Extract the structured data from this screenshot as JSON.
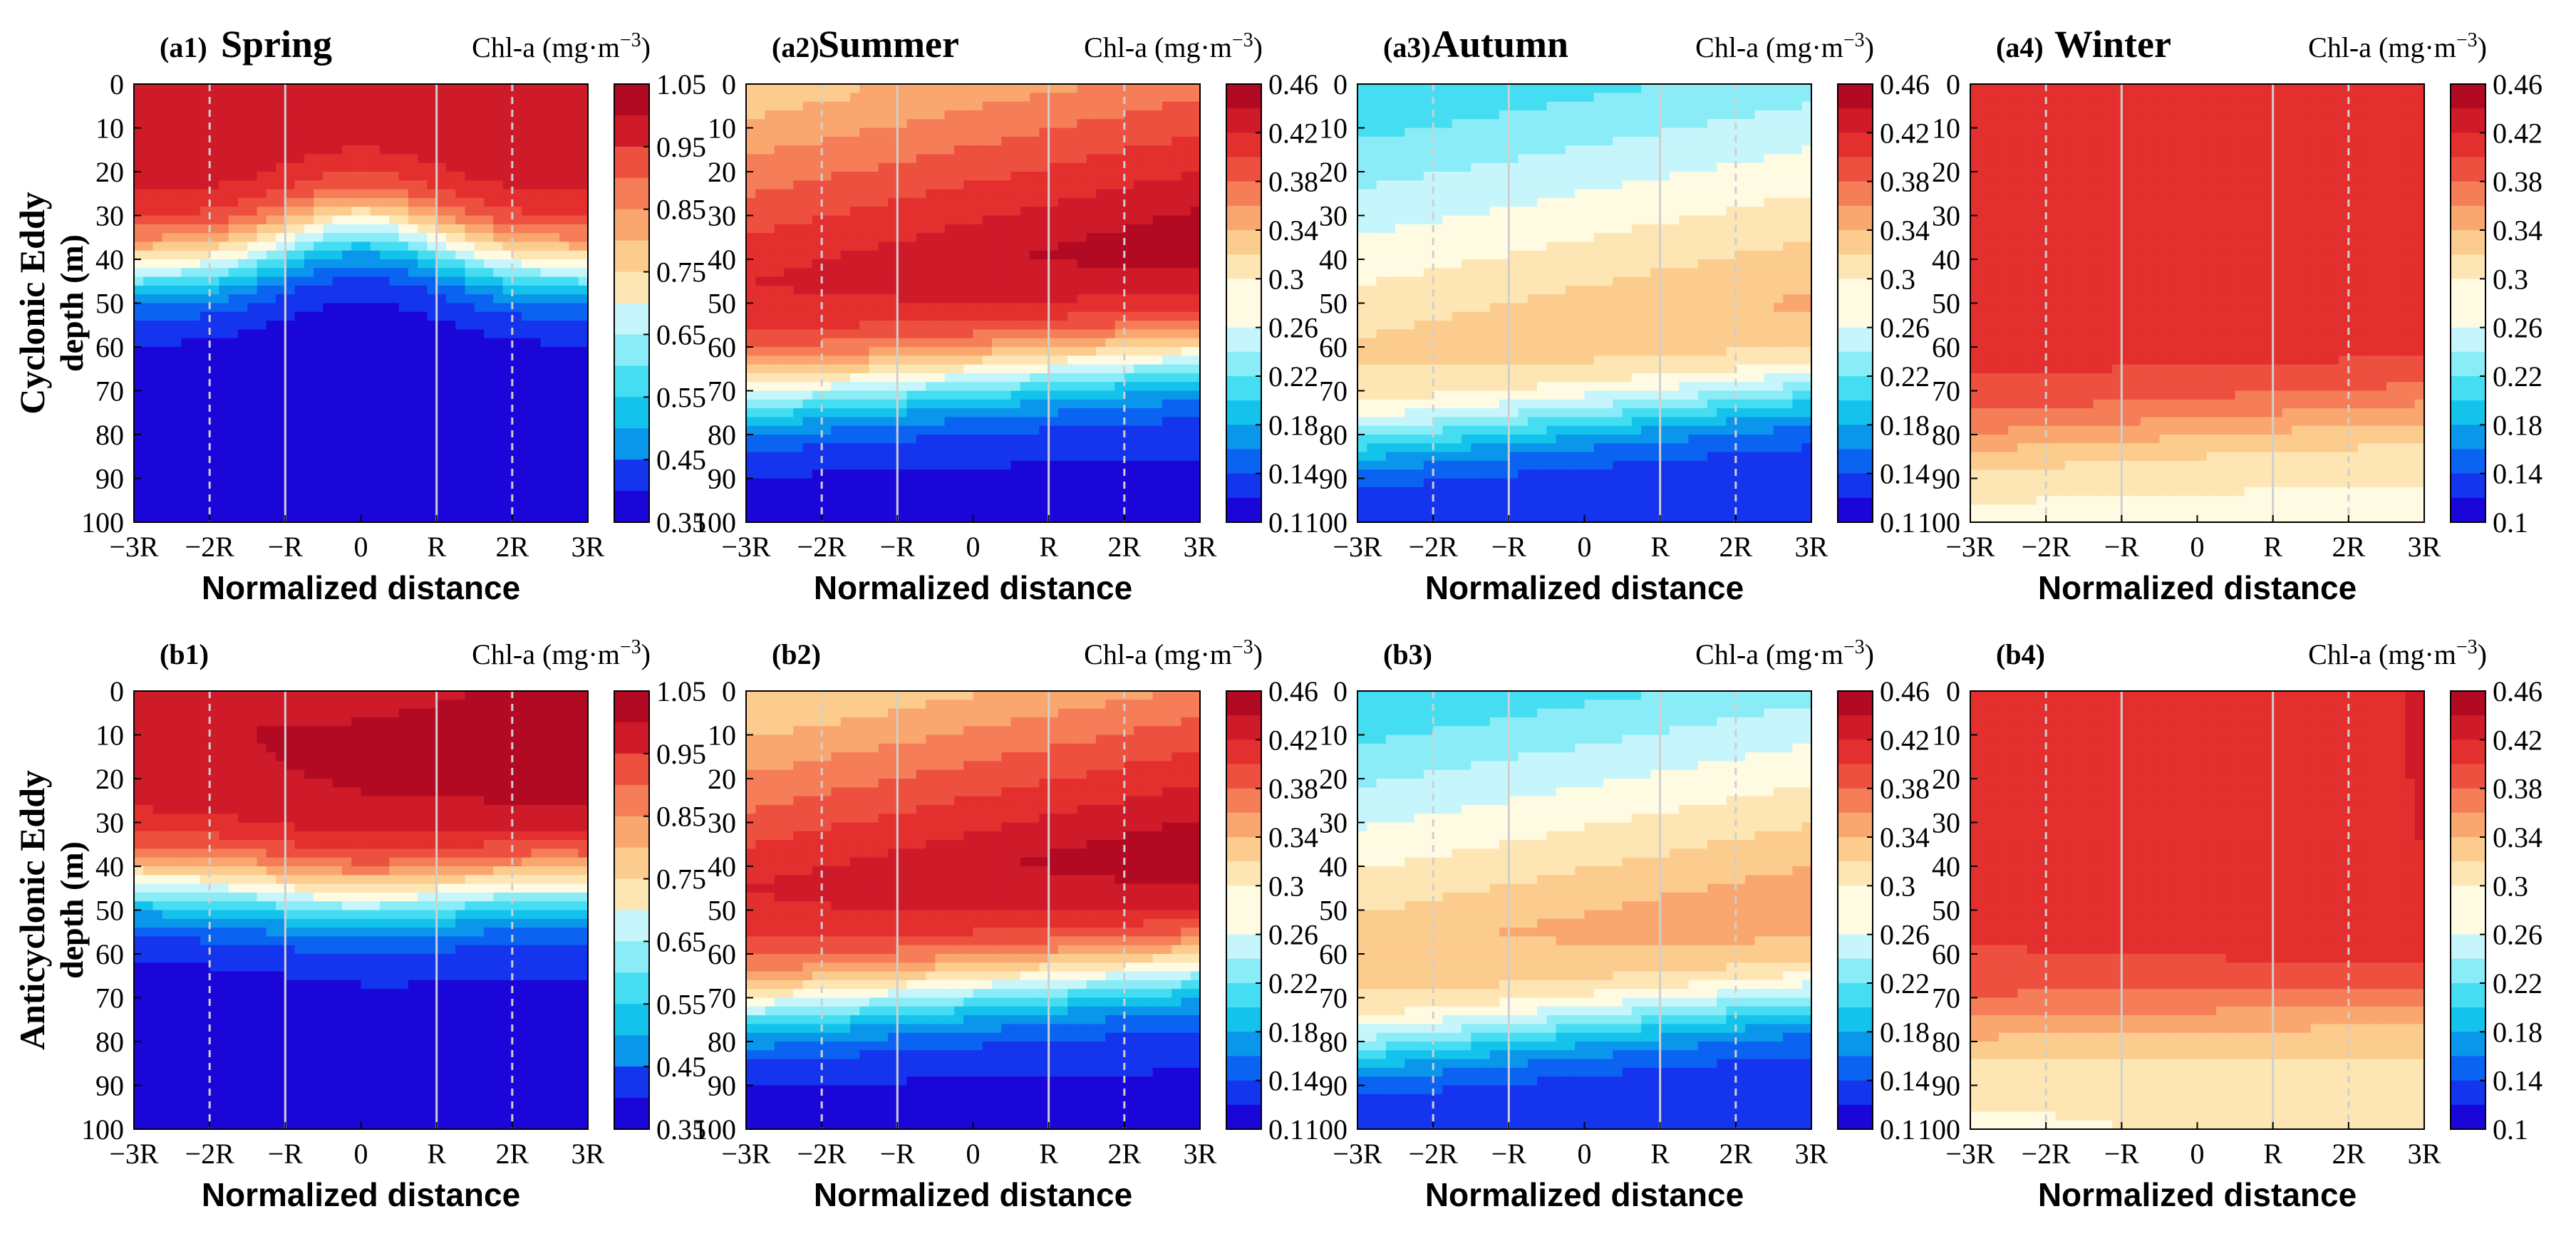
{
  "figure": {
    "row_labels": [
      {
        "eddy": "Cyclonic Eddy",
        "ylabel": "depth (m)"
      },
      {
        "eddy": "Anticyclonic Eddy",
        "ylabel": "depth (m)"
      }
    ],
    "xlabel": "Normalized distance",
    "colorbar_label_prefix": "Chl-a (mg·m",
    "colorbar_label_exp": "−3",
    "colorbar_label_suffix": ")"
  },
  "chart_data": [
    {
      "id": "a1",
      "panel_label": "(a1)",
      "title": "Spring",
      "type": "heatmap",
      "row": 0,
      "col": 0,
      "x_ticks": [
        "−3R",
        "−2R",
        "−R",
        "0",
        "R",
        "2R",
        "3R"
      ],
      "y_ticks": [
        "0",
        "10",
        "20",
        "30",
        "40",
        "50",
        "60",
        "70",
        "80",
        "90",
        "100"
      ],
      "xlim": [
        -3,
        3
      ],
      "ylim": [
        0,
        100
      ],
      "colorbar_ticks": [
        "1.05",
        "0.95",
        "0.85",
        "0.75",
        "0.65",
        "0.55",
        "0.45",
        "0.35"
      ],
      "clim": [
        0.35,
        1.05
      ],
      "levels": 14,
      "center_value": 1.0,
      "surface_value": 1.0,
      "dcm_depth": 8,
      "dcm_value": 1.0,
      "deep_value": 0.36,
      "decay_depth": 42,
      "decay_width": 13,
      "tilt": 0,
      "x_asym": 0,
      "center_lift": 10
    },
    {
      "id": "a2",
      "panel_label": "(a2)",
      "title": "Summer",
      "type": "heatmap",
      "row": 0,
      "col": 1,
      "x_ticks": [
        "−3R",
        "−2R",
        "−R",
        "0",
        "R",
        "2R",
        "3R"
      ],
      "y_ticks": [
        "0",
        "10",
        "20",
        "30",
        "40",
        "50",
        "60",
        "70",
        "80",
        "90",
        "100"
      ],
      "xlim": [
        -3,
        3
      ],
      "ylim": [
        0,
        100
      ],
      "colorbar_ticks": [
        "0.46",
        "0.42",
        "0.38",
        "0.34",
        "0.3",
        "0.26",
        "0.22",
        "0.18",
        "0.14",
        "0.1"
      ],
      "clim": [
        0.1,
        0.46
      ],
      "levels": 18,
      "surface_value": 0.34,
      "dcm_depth": 40,
      "dcm_value": 0.44,
      "deep_value": 0.11,
      "decay_depth": 66,
      "decay_width": 14,
      "tilt": -5,
      "x_asym": 0.04,
      "center_lift": 0
    },
    {
      "id": "a3",
      "panel_label": "(a3)",
      "title": "Autumn",
      "type": "heatmap",
      "row": 0,
      "col": 2,
      "x_ticks": [
        "−3R",
        "−2R",
        "−R",
        "0",
        "R",
        "2R",
        "3R"
      ],
      "y_ticks": [
        "0",
        "10",
        "20",
        "30",
        "40",
        "50",
        "60",
        "70",
        "80",
        "90",
        "100"
      ],
      "xlim": [
        -3,
        3
      ],
      "ylim": [
        0,
        100
      ],
      "colorbar_ticks": [
        "0.46",
        "0.42",
        "0.38",
        "0.34",
        "0.3",
        "0.26",
        "0.22",
        "0.18",
        "0.14",
        "0.1"
      ],
      "clim": [
        0.1,
        0.46
      ],
      "levels": 18,
      "surface_value": 0.22,
      "dcm_depth": 55,
      "dcm_value": 0.33,
      "deep_value": 0.12,
      "decay_depth": 76,
      "decay_width": 12,
      "tilt": -6,
      "x_asym": 0.03,
      "center_lift": 0
    },
    {
      "id": "a4",
      "panel_label": "(a4)",
      "title": "Winter",
      "type": "heatmap",
      "row": 0,
      "col": 3,
      "x_ticks": [
        "−3R",
        "−2R",
        "−R",
        "0",
        "R",
        "2R",
        "3R"
      ],
      "y_ticks": [
        "0",
        "10",
        "20",
        "30",
        "40",
        "50",
        "60",
        "70",
        "80",
        "90",
        "100"
      ],
      "xlim": [
        -3,
        3
      ],
      "ylim": [
        0,
        100
      ],
      "colorbar_ticks": [
        "0.46",
        "0.42",
        "0.38",
        "0.34",
        "0.3",
        "0.26",
        "0.22",
        "0.18",
        "0.14",
        "0.1"
      ],
      "clim": [
        0.1,
        0.46
      ],
      "levels": 18,
      "surface_value": 0.41,
      "dcm_depth": 20,
      "dcm_value": 0.41,
      "deep_value": 0.28,
      "decay_depth": 78,
      "decay_width": 14,
      "tilt": -4,
      "x_asym": 0.01,
      "center_lift": 0
    },
    {
      "id": "b1",
      "panel_label": "(b1)",
      "title": "",
      "type": "heatmap",
      "row": 1,
      "col": 0,
      "x_ticks": [
        "−3R",
        "−2R",
        "−R",
        "0",
        "R",
        "2R",
        "3R"
      ],
      "y_ticks": [
        "0",
        "10",
        "20",
        "30",
        "40",
        "50",
        "60",
        "70",
        "80",
        "90",
        "100"
      ],
      "xlim": [
        -3,
        3
      ],
      "ylim": [
        0,
        100
      ],
      "colorbar_ticks": [
        "1.05",
        "0.95",
        "0.85",
        "0.75",
        "0.65",
        "0.55",
        "0.45",
        "0.35"
      ],
      "clim": [
        0.35,
        1.05
      ],
      "levels": 14,
      "surface_value": 1.0,
      "dcm_depth": 8,
      "dcm_value": 1.02,
      "deep_value": 0.37,
      "decay_depth": 44,
      "decay_width": 13,
      "tilt": 0,
      "x_asym": 0.02,
      "center_lift": -3
    },
    {
      "id": "b2",
      "panel_label": "(b2)",
      "title": "",
      "type": "heatmap",
      "row": 1,
      "col": 1,
      "x_ticks": [
        "−3R",
        "−2R",
        "−R",
        "0",
        "R",
        "2R",
        "3R"
      ],
      "y_ticks": [
        "0",
        "10",
        "20",
        "30",
        "40",
        "50",
        "60",
        "70",
        "80",
        "90",
        "100"
      ],
      "xlim": [
        -3,
        3
      ],
      "ylim": [
        0,
        100
      ],
      "colorbar_ticks": [
        "0.46",
        "0.42",
        "0.38",
        "0.34",
        "0.3",
        "0.26",
        "0.22",
        "0.18",
        "0.14",
        "0.1"
      ],
      "clim": [
        0.1,
        0.46
      ],
      "levels": 18,
      "surface_value": 0.33,
      "dcm_depth": 40,
      "dcm_value": 0.44,
      "deep_value": 0.11,
      "decay_depth": 67,
      "decay_width": 14,
      "tilt": -5,
      "x_asym": 0.04,
      "center_lift": 0
    },
    {
      "id": "b3",
      "panel_label": "(b3)",
      "title": "",
      "type": "heatmap",
      "row": 1,
      "col": 2,
      "x_ticks": [
        "−3R",
        "−2R",
        "−R",
        "0",
        "R",
        "2R",
        "3R"
      ],
      "y_ticks": [
        "0",
        "10",
        "20",
        "30",
        "40",
        "50",
        "60",
        "70",
        "80",
        "90",
        "100"
      ],
      "xlim": [
        -3,
        3
      ],
      "ylim": [
        0,
        100
      ],
      "colorbar_ticks": [
        "0.46",
        "0.42",
        "0.38",
        "0.34",
        "0.3",
        "0.26",
        "0.22",
        "0.18",
        "0.14",
        "0.1"
      ],
      "clim": [
        0.1,
        0.46
      ],
      "levels": 18,
      "surface_value": 0.22,
      "dcm_depth": 53,
      "dcm_value": 0.34,
      "deep_value": 0.12,
      "decay_depth": 76,
      "decay_width": 12,
      "tilt": -6,
      "x_asym": 0.03,
      "center_lift": 0
    },
    {
      "id": "b4",
      "panel_label": "(b4)",
      "title": "",
      "type": "heatmap",
      "row": 1,
      "col": 3,
      "x_ticks": [
        "−3R",
        "−2R",
        "−R",
        "0",
        "R",
        "2R",
        "3R"
      ],
      "y_ticks": [
        "0",
        "10",
        "20",
        "30",
        "40",
        "50",
        "60",
        "70",
        "80",
        "90",
        "100"
      ],
      "xlim": [
        -3,
        3
      ],
      "ylim": [
        0,
        100
      ],
      "colorbar_ticks": [
        "0.46",
        "0.42",
        "0.38",
        "0.34",
        "0.3",
        "0.26",
        "0.22",
        "0.18",
        "0.14",
        "0.1"
      ],
      "clim": [
        0.1,
        0.46
      ],
      "levels": 18,
      "surface_value": 0.41,
      "dcm_depth": 20,
      "dcm_value": 0.41,
      "deep_value": 0.29,
      "decay_depth": 74,
      "decay_width": 14,
      "tilt": -3,
      "x_asym": 0.02,
      "center_lift": 0
    }
  ],
  "colors": {
    "colormap": [
      "#1a06d9",
      "#1434ee",
      "#0b63f2",
      "#0a96ea",
      "#13c3ec",
      "#45ddf2",
      "#8aecf7",
      "#c6f6fb",
      "#fffbe3",
      "#fde6b4",
      "#fbcc8d",
      "#f9a76e",
      "#f57d57",
      "#ee5040",
      "#e42f2f",
      "#cf1a2a",
      "#b20a22"
    ],
    "guide_line": "#cfcfcf",
    "text": "#000000"
  }
}
